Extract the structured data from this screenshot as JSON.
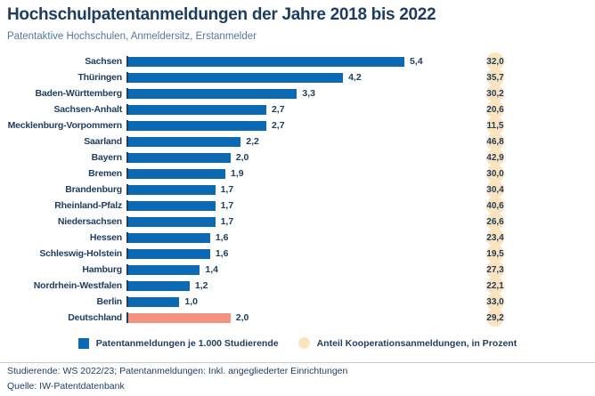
{
  "header": {
    "title": "Hochschulpatentanmeldungen der Jahre 2018 bis 2022",
    "subtitle": "Patentaktive Hochschulen, Anmeldersitz, Erstanmelder"
  },
  "chart_data": {
    "type": "bar",
    "orientation": "horizontal",
    "categories": [
      "Sachsen",
      "Thüringen",
      "Baden-Württemberg",
      "Sachsen-Anhalt",
      "Mecklenburg-Vorpommern",
      "Saarland",
      "Bayern",
      "Bremen",
      "Brandenburg",
      "Rheinland-Pfalz",
      "Niedersachsen",
      "Hessen",
      "Schleswig-Holstein",
      "Hamburg",
      "Nordrhein-Westfalen",
      "Berlin",
      "Deutschland"
    ],
    "series": [
      {
        "name": "Patentanmeldungen je 1.000 Studierende",
        "values": [
          5.4,
          4.2,
          3.3,
          2.7,
          2.7,
          2.2,
          2.0,
          1.9,
          1.7,
          1.7,
          1.7,
          1.6,
          1.6,
          1.4,
          1.2,
          1.0,
          2.0
        ],
        "labels": [
          "5,4",
          "4,2",
          "3,3",
          "2,7",
          "2,7",
          "2,2",
          "2,0",
          "1,9",
          "1,7",
          "1,7",
          "1,7",
          "1,6",
          "1,6",
          "1,4",
          "1,2",
          "1,0",
          "2,0"
        ]
      },
      {
        "name": "Anteil Kooperationsanmeldungen, in Prozent",
        "values": [
          32.0,
          35.7,
          30.2,
          20.6,
          11.5,
          46.8,
          42.9,
          30.0,
          30.4,
          40.6,
          26.6,
          23.4,
          19.5,
          27.3,
          22.1,
          33.0,
          29.2
        ],
        "labels": [
          "32,0",
          "35,7",
          "30,2",
          "20,6",
          "11,5",
          "46,8",
          "42,9",
          "30,0",
          "30,4",
          "40,6",
          "26,6",
          "23,4",
          "19,5",
          "27,3",
          "22,1",
          "33,0",
          "29,2"
        ]
      }
    ],
    "highlight_category": "Deutschland",
    "highlight_index": 16,
    "xlim": [
      0,
      5.8
    ],
    "grid": false,
    "legend_position": "bottom",
    "colors": {
      "bar": "#0c69b3",
      "highlight_bar": "#f3937f",
      "badge": "#fbe3bd",
      "text": "#1d3c5e",
      "subtitle": "#54789c",
      "axis": "#1e3f63",
      "divider": "#cccccc"
    }
  },
  "legend": {
    "items": [
      {
        "label": "Patentanmeldungen je 1.000 Studierende",
        "swatch": "square",
        "color": "#0c69b3"
      },
      {
        "label": "Anteil Kooperationsanmeldungen, in Prozent",
        "swatch": "circle",
        "color": "#fbe3bd"
      }
    ]
  },
  "footer": {
    "note": "Studierende: WS 2022/23; Patentanmeldungen: Inkl. angegliederter Einrichtungen",
    "source": "Quelle: IW-Patentdatenbank"
  }
}
